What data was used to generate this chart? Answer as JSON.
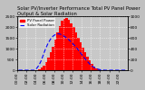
{
  "title": "Solar PV/Inverter Performance Total PV Panel Power Output & Solar Radiation",
  "legend_pv": "PV Panel Power",
  "legend_sr": "Solar Radiation",
  "bg_color": "#c0c0c0",
  "plot_bg": "#c8c8c8",
  "bar_color": "#ff0000",
  "line_color": "#0000ff",
  "xlim": [
    0,
    48
  ],
  "ylim_left": [
    0,
    2500
  ],
  "ylim_right": [
    0,
    1000
  ],
  "x_values": [
    0,
    1,
    2,
    3,
    4,
    5,
    6,
    7,
    8,
    9,
    10,
    11,
    12,
    13,
    14,
    15,
    16,
    17,
    18,
    19,
    20,
    21,
    22,
    23,
    24,
    25,
    26,
    27,
    28,
    29,
    30,
    31,
    32,
    33,
    34,
    35,
    36,
    37,
    38,
    39,
    40,
    41,
    42,
    43,
    44,
    45,
    46,
    47
  ],
  "pv_power": [
    0,
    0,
    0,
    0,
    0,
    0,
    0,
    0,
    20,
    60,
    120,
    220,
    380,
    580,
    820,
    1100,
    1420,
    1760,
    2050,
    2280,
    2380,
    2420,
    2350,
    2180,
    1980,
    1750,
    1520,
    1280,
    1050,
    820,
    620,
    440,
    290,
    180,
    100,
    50,
    20,
    8,
    2,
    0,
    0,
    0,
    0,
    0,
    0,
    0,
    0,
    0
  ],
  "solar_rad": [
    0,
    0,
    0,
    0,
    0,
    0,
    0,
    0,
    40,
    100,
    190,
    310,
    420,
    510,
    580,
    630,
    660,
    675,
    670,
    650,
    625,
    595,
    560,
    520,
    475,
    430,
    375,
    320,
    265,
    210,
    160,
    115,
    78,
    50,
    28,
    14,
    6,
    2,
    0,
    0,
    0,
    0,
    0,
    0,
    0,
    0,
    0,
    0
  ],
  "xtick_labels": [
    "00:00",
    "02:00",
    "04:00",
    "06:00",
    "08:00",
    "10:00",
    "12:00",
    "14:00",
    "16:00",
    "18:00",
    "20:00",
    "22:00"
  ],
  "xtick_positions": [
    0,
    4,
    8,
    12,
    16,
    20,
    24,
    28,
    32,
    36,
    40,
    44
  ],
  "ytick_left": [
    0,
    500,
    1000,
    1500,
    2000,
    2500
  ],
  "ytick_right": [
    0,
    200,
    400,
    600,
    800,
    1000
  ],
  "title_fontsize": 3.8,
  "tick_fontsize": 3.2,
  "legend_fontsize": 2.8,
  "grid_color": "#ffffff",
  "grid_style": ":"
}
